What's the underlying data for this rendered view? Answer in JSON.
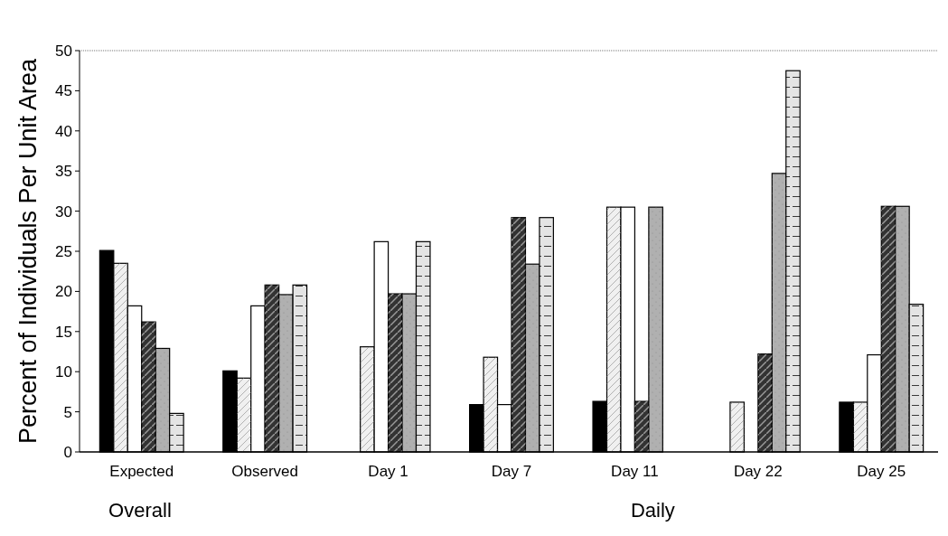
{
  "chart_data": {
    "type": "bar",
    "ylabel": "Percent of Individuals Per Unit Area",
    "categories": [
      "Expected",
      "Observed",
      "Day 1",
      "Day 7",
      "Day 11",
      "Day 22",
      "Day 25"
    ],
    "series": [
      {
        "color": "#000000",
        "values": [
          25.1,
          10.1,
          0,
          5.9,
          6.3,
          0,
          6.2
        ]
      },
      {
        "color": "#f0f0f0",
        "values": [
          23.5,
          9.2,
          13.1,
          11.8,
          30.5,
          6.2,
          6.2
        ]
      },
      {
        "color": "#ffffff",
        "values": [
          18.2,
          18.2,
          26.2,
          5.9,
          30.5,
          0,
          12.1
        ]
      },
      {
        "color": "#333333",
        "values": [
          16.2,
          20.8,
          19.7,
          29.2,
          6.3,
          12.2,
          30.6
        ]
      },
      {
        "color": "#b0b0b0",
        "values": [
          12.9,
          19.6,
          19.7,
          23.4,
          30.5,
          34.7,
          30.6
        ]
      },
      {
        "color": "#e4e4e4",
        "values": [
          4.8,
          20.8,
          26.2,
          29.2,
          0,
          47.5,
          18.4
        ]
      }
    ],
    "ylim": [
      0,
      50
    ],
    "yticks": [
      0,
      5,
      10,
      15,
      20,
      25,
      30,
      35,
      40,
      45,
      50
    ],
    "grid": false,
    "annotations": [
      "Overall",
      "Daily"
    ]
  }
}
